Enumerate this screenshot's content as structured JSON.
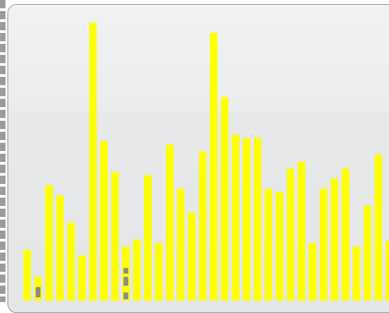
{
  "chart_data": {
    "type": "bar",
    "values": [
      75,
      35,
      170,
      155,
      115,
      67,
      410,
      235,
      190,
      80,
      90,
      185,
      85,
      230,
      165,
      130,
      220,
      395,
      300,
      245,
      240,
      240,
      165,
      160,
      195,
      205,
      85,
      165,
      180,
      195,
      80,
      140,
      215,
      88
    ],
    "ylim": [
      0,
      420
    ],
    "bar_color": "#ffff00",
    "gray_marks": [
      {
        "bar_index": 1,
        "from": 5,
        "to": 20
      },
      {
        "bar_index": 9,
        "from": 2,
        "to": 12
      },
      {
        "bar_index": 9,
        "from": 22,
        "to": 35
      },
      {
        "bar_index": 9,
        "from": 40,
        "to": 48
      }
    ],
    "mark_color": "#8c8c8c"
  }
}
